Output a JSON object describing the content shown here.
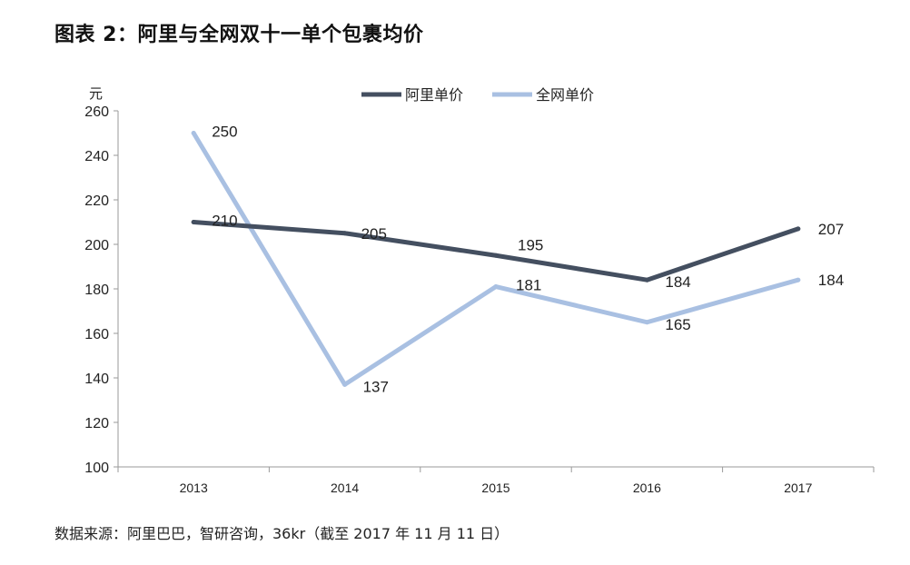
{
  "title": "图表 2：阿里与全网双十一单个包裹均价",
  "source": "数据来源：阿里巴巴，智研咨询，36kr（截至 2017 年 11 月 11 日）",
  "chart_data": {
    "type": "line",
    "categories": [
      "2013",
      "2014",
      "2015",
      "2016",
      "2017"
    ],
    "y_unit": "元",
    "ylim": [
      100,
      260
    ],
    "y_ticks": [
      100,
      120,
      140,
      160,
      180,
      200,
      220,
      240,
      260
    ],
    "grid": false,
    "legend_position": "top-center",
    "series": [
      {
        "name": "阿里单价",
        "values": [
          210,
          205,
          195,
          184,
          207
        ],
        "labels": [
          "210",
          "205",
          "195",
          "184",
          "207"
        ],
        "color": "#444f60"
      },
      {
        "name": "全网单价",
        "values": [
          250,
          137,
          181,
          165,
          184
        ],
        "labels": [
          "250",
          "137",
          "181",
          "165",
          "184"
        ],
        "color": "#a9c0e2"
      }
    ]
  }
}
